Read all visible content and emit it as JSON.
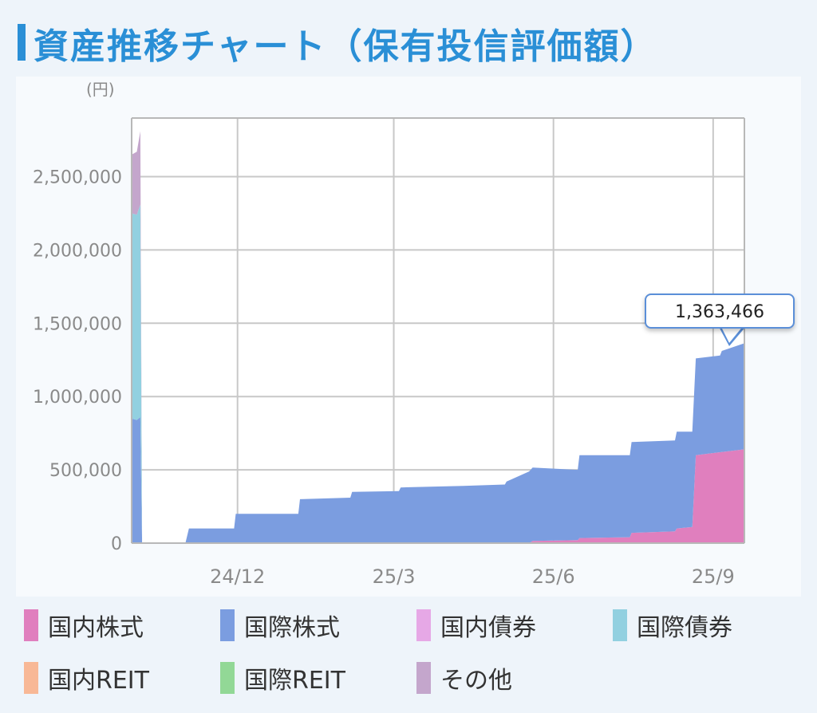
{
  "header": {
    "title": "資産推移チャート（保有投信評価額）"
  },
  "chart_data": {
    "type": "area",
    "stacked": true,
    "y_unit": "(円)",
    "ylim": [
      0,
      2900000
    ],
    "y_ticks": [
      0,
      500000,
      1000000,
      1500000,
      2000000,
      2500000
    ],
    "y_tick_labels": [
      "0",
      "500,000",
      "1,000,000",
      "1,500,000",
      "2,000,000",
      "2,500,000"
    ],
    "x_ticks": [
      "24/12",
      "25/3",
      "25/6",
      "25/9"
    ],
    "x_tick_dates": [
      "2024-12-01",
      "2025-03-01",
      "2025-06-01",
      "2025-09-01"
    ],
    "xlim": [
      "2024-10-01",
      "2025-09-19"
    ],
    "grid": true,
    "legend_position": "bottom",
    "tooltip": {
      "date": "2025-09-19",
      "value_label": "1,363,466"
    },
    "series": [
      {
        "name": "国内株式",
        "color": "#e07fbe",
        "points": [
          [
            "2024-10-01",
            0
          ],
          [
            "2025-05-18",
            0
          ],
          [
            "2025-05-20",
            15000
          ],
          [
            "2025-06-15",
            20000
          ],
          [
            "2025-06-16",
            35000
          ],
          [
            "2025-07-15",
            40000
          ],
          [
            "2025-07-16",
            70000
          ],
          [
            "2025-08-10",
            80000
          ],
          [
            "2025-08-11",
            100000
          ],
          [
            "2025-08-20",
            110000
          ],
          [
            "2025-08-22",
            600000
          ],
          [
            "2025-09-05",
            620000
          ],
          [
            "2025-09-19",
            640000
          ]
        ]
      },
      {
        "name": "国際株式",
        "color": "#7b9de0",
        "points": [
          [
            "2024-10-01",
            850000
          ],
          [
            "2024-10-04",
            840000
          ],
          [
            "2024-10-06",
            860000
          ],
          [
            "2024-10-07",
            0
          ],
          [
            "2024-11-01",
            0
          ],
          [
            "2024-11-03",
            100000
          ],
          [
            "2024-11-29",
            100000
          ],
          [
            "2024-11-30",
            200000
          ],
          [
            "2025-01-05",
            200000
          ],
          [
            "2025-01-06",
            300000
          ],
          [
            "2025-02-04",
            310000
          ],
          [
            "2025-02-05",
            350000
          ],
          [
            "2025-03-04",
            355000
          ],
          [
            "2025-03-05",
            380000
          ],
          [
            "2025-04-10",
            390000
          ],
          [
            "2025-05-04",
            400000
          ],
          [
            "2025-05-05",
            420000
          ],
          [
            "2025-05-20",
            500000
          ],
          [
            "2025-06-15",
            480000
          ],
          [
            "2025-06-16",
            565000
          ],
          [
            "2025-07-15",
            560000
          ],
          [
            "2025-07-16",
            620000
          ],
          [
            "2025-08-10",
            620000
          ],
          [
            "2025-08-11",
            660000
          ],
          [
            "2025-08-20",
            650000
          ],
          [
            "2025-08-22",
            660000
          ],
          [
            "2025-09-05",
            660000
          ],
          [
            "2025-09-06",
            690000
          ],
          [
            "2025-09-19",
            723466
          ]
        ]
      },
      {
        "name": "国内債券",
        "color": "#e6a8e6",
        "points": [
          [
            "2024-10-01",
            0
          ],
          [
            "2025-09-19",
            0
          ]
        ]
      },
      {
        "name": "国際債券",
        "color": "#92d0e0",
        "points": [
          [
            "2024-10-01",
            1400000
          ],
          [
            "2024-10-04",
            1400000
          ],
          [
            "2024-10-06",
            1450000
          ],
          [
            "2024-10-07",
            0
          ],
          [
            "2025-09-19",
            0
          ]
        ]
      },
      {
        "name": "国内REIT",
        "color": "#f8b896",
        "points": [
          [
            "2024-10-01",
            0
          ],
          [
            "2025-09-19",
            0
          ]
        ]
      },
      {
        "name": "国際REIT",
        "color": "#92d896",
        "points": [
          [
            "2024-10-01",
            0
          ],
          [
            "2025-09-19",
            0
          ]
        ]
      },
      {
        "name": "その他",
        "color": "#c4a6cc",
        "points": [
          [
            "2024-10-01",
            400000
          ],
          [
            "2024-10-04",
            430000
          ],
          [
            "2024-10-06",
            500000
          ],
          [
            "2024-10-07",
            0
          ],
          [
            "2025-09-19",
            0
          ]
        ]
      }
    ]
  }
}
